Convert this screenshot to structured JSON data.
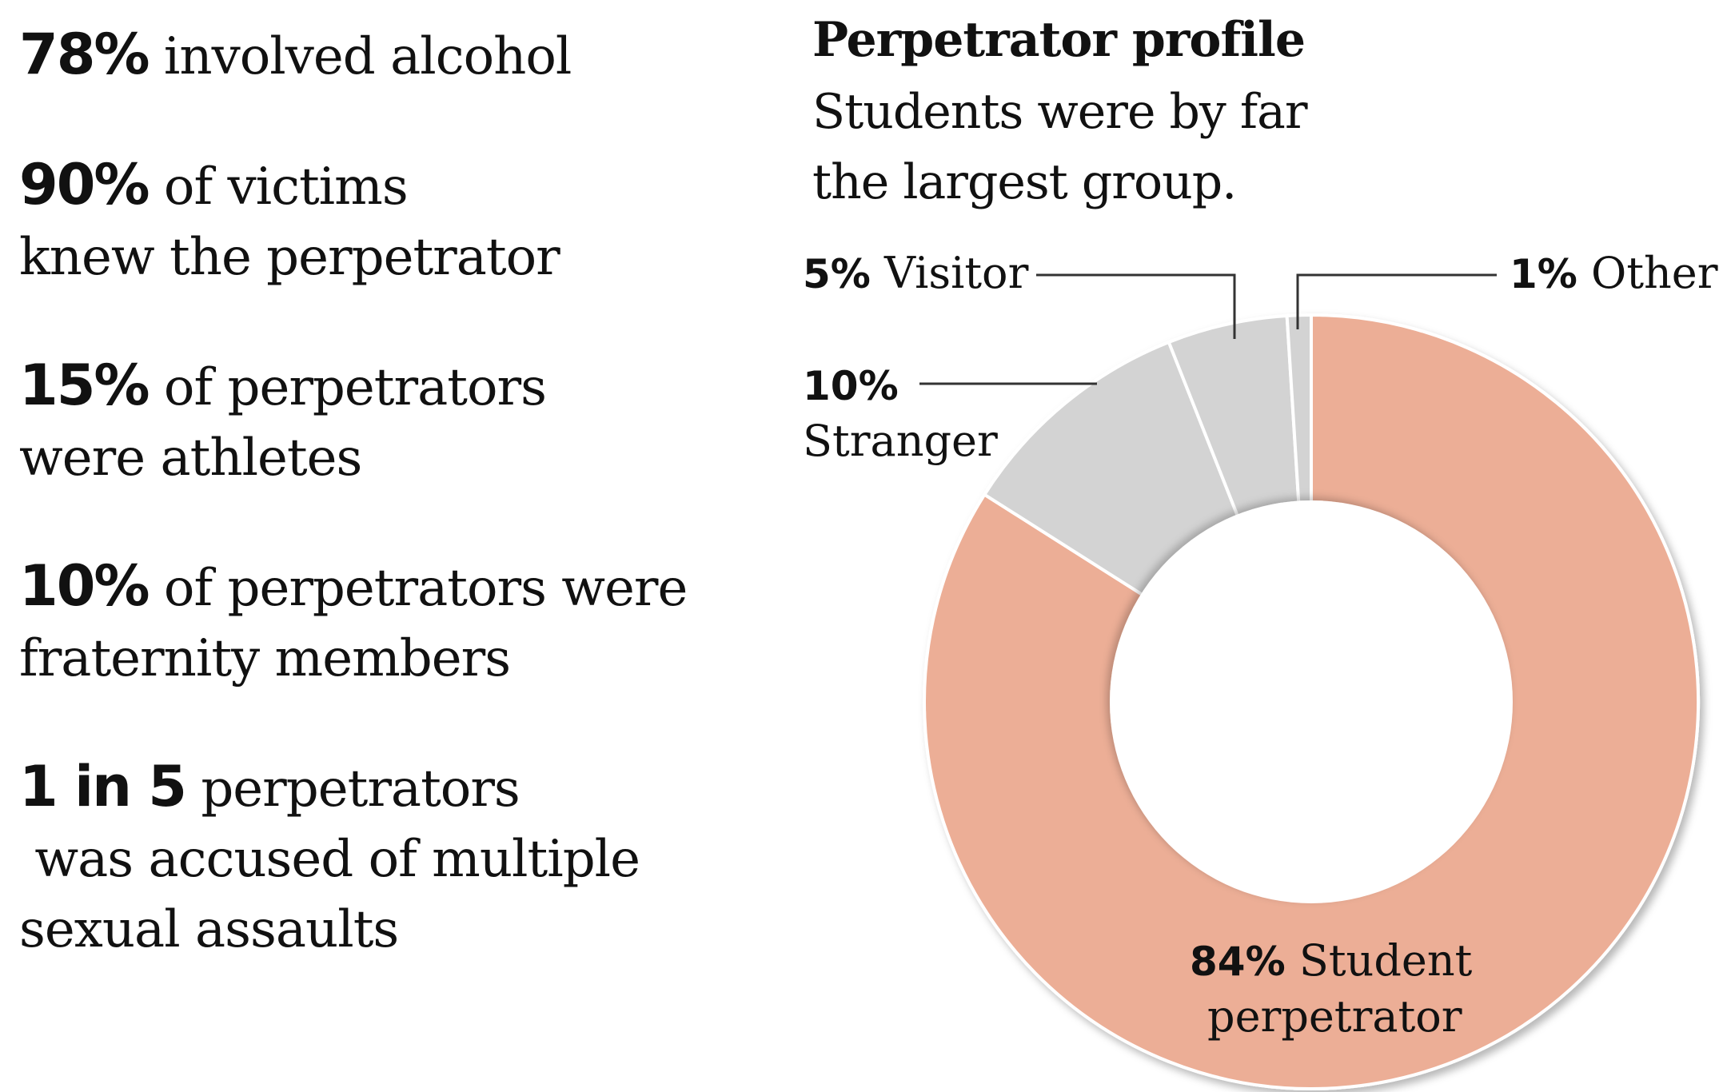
{
  "stats": [
    {
      "num": "78%",
      "lines": [
        "involved alcohol"
      ]
    },
    {
      "num": "90%",
      "lines": [
        "of victims",
        "knew the perpetrator"
      ]
    },
    {
      "num": "15%",
      "lines": [
        "of perpetrators",
        "were athletes"
      ]
    },
    {
      "num": "10%",
      "lines": [
        "of perpetrators were",
        "fraternity members"
      ]
    },
    {
      "num": "1 in 5",
      "lines": [
        "perpetrators",
        " was accused of multiple",
        "sexual assaults"
      ]
    }
  ],
  "chart_data": {
    "type": "pie",
    "title": "Perpetrator profile",
    "subtitle_lines": [
      "Students were by far",
      "the largest group."
    ],
    "slices": [
      {
        "name": "Student perpetrator",
        "value": 84,
        "label_pct": "84%",
        "label_lines": [
          "Student",
          "perpetrator"
        ],
        "color": "#ecae96"
      },
      {
        "name": "Stranger",
        "value": 10,
        "label_pct": "10%",
        "label_lines": [
          "Stranger"
        ],
        "color": "#d3d3d3"
      },
      {
        "name": "Visitor",
        "value": 5,
        "label_pct": "5%",
        "label_lines": [
          "Visitor"
        ],
        "color": "#d3d3d3"
      },
      {
        "name": "Other",
        "value": 1,
        "label_pct": "1%",
        "label_lines": [
          "Other"
        ],
        "color": "#d3d3d3"
      }
    ],
    "donut": true,
    "legend": "none"
  }
}
